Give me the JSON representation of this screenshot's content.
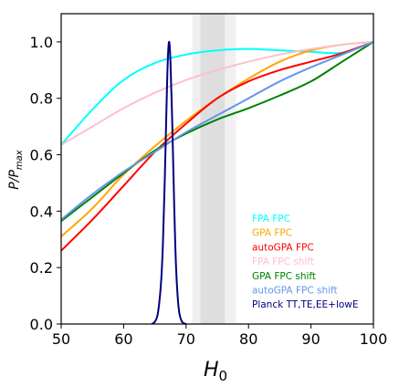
{
  "chart_data": {
    "type": "line",
    "xlabel": "H",
    "xlabel_sub": "0",
    "ylabel": "P/P",
    "ylabel_sub": "max",
    "xlim": [
      50,
      100
    ],
    "ylim": [
      0,
      1.1
    ],
    "x_ticks": [
      "50",
      "60",
      "70",
      "80",
      "90",
      "100"
    ],
    "y_ticks": [
      "0.0",
      "0.2",
      "0.4",
      "0.6",
      "0.8",
      "1.0"
    ],
    "grid": false,
    "legend_placement": "lower-right",
    "bands": [
      {
        "from": 71,
        "to": 78,
        "color": "#f0f0f0"
      },
      {
        "from": 72.3,
        "to": 76.2,
        "color": "#dedede"
      }
    ],
    "series": [
      {
        "name": "FPA FPC",
        "color": "#00ffff",
        "x": [
          50,
          55,
          60,
          65,
          70,
          75,
          80,
          85,
          90,
          95,
          100
        ],
        "y": [
          0.635,
          0.76,
          0.865,
          0.925,
          0.955,
          0.97,
          0.975,
          0.97,
          0.965,
          0.962,
          1.0
        ]
      },
      {
        "name": "GPA FPC",
        "color": "#ffa500",
        "x": [
          50,
          55,
          60,
          65,
          70,
          75,
          80,
          85,
          90,
          95,
          100
        ],
        "y": [
          0.31,
          0.41,
          0.53,
          0.63,
          0.72,
          0.8,
          0.87,
          0.93,
          0.97,
          0.99,
          1.0
        ]
      },
      {
        "name": "autoGPA FPC",
        "color": "#ff0000",
        "x": [
          50,
          55,
          60,
          65,
          70,
          75,
          80,
          85,
          90,
          95,
          100
        ],
        "y": [
          0.26,
          0.37,
          0.49,
          0.61,
          0.71,
          0.8,
          0.86,
          0.9,
          0.93,
          0.96,
          1.0
        ]
      },
      {
        "name": "FPA FPC shift",
        "color": "#ffc0cb",
        "x": [
          50,
          55,
          60,
          65,
          70,
          75,
          80,
          85,
          90,
          95,
          100
        ],
        "y": [
          0.635,
          0.7,
          0.765,
          0.82,
          0.865,
          0.9,
          0.93,
          0.955,
          0.975,
          0.99,
          1.0
        ]
      },
      {
        "name": "GPA FPC shift",
        "color": "#008000",
        "x": [
          50,
          55,
          60,
          65,
          70,
          75,
          80,
          85,
          90,
          95,
          100
        ],
        "y": [
          0.365,
          0.45,
          0.535,
          0.615,
          0.675,
          0.725,
          0.765,
          0.81,
          0.86,
          0.93,
          1.0
        ]
      },
      {
        "name": "autoGPA FPC shift",
        "color": "#6495ed",
        "x": [
          50,
          55,
          60,
          65,
          70,
          75,
          80,
          85,
          90,
          95,
          100
        ],
        "y": [
          0.37,
          0.46,
          0.54,
          0.61,
          0.68,
          0.74,
          0.8,
          0.86,
          0.91,
          0.955,
          1.0
        ]
      },
      {
        "name": "Planck TT,TE,EE+lowE",
        "color": "#000080",
        "x": [
          64.5,
          65.0,
          65.5,
          66.0,
          66.3,
          66.6,
          66.9,
          67.1,
          67.3,
          67.5,
          67.8,
          68.1,
          68.4,
          68.8,
          69.3,
          70.0
        ],
        "y": [
          0.0,
          0.008,
          0.04,
          0.15,
          0.29,
          0.52,
          0.8,
          0.95,
          1.0,
          0.93,
          0.7,
          0.42,
          0.2,
          0.06,
          0.01,
          0.0
        ]
      }
    ]
  }
}
